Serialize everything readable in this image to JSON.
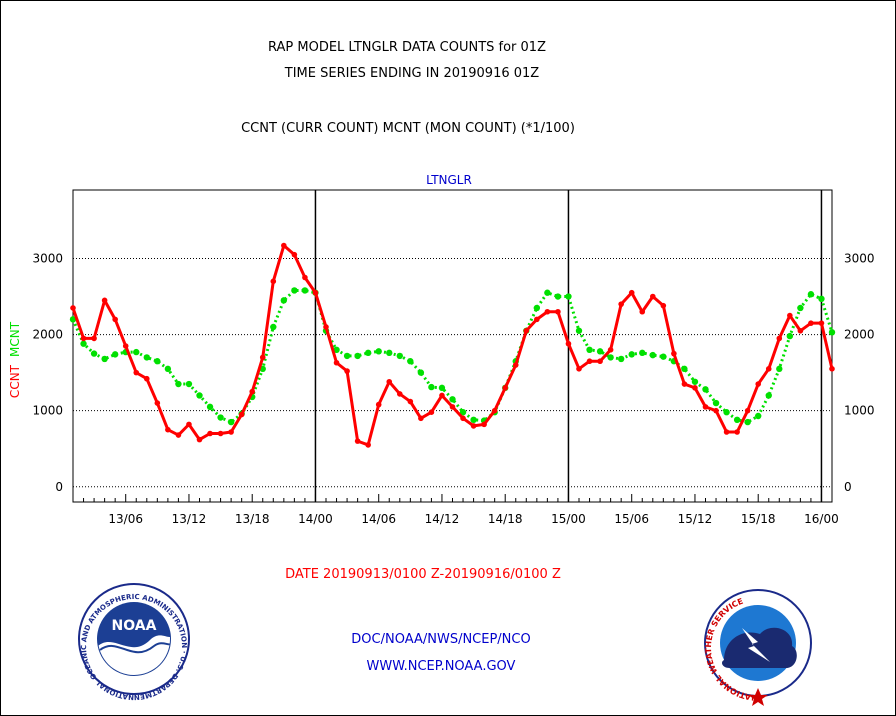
{
  "header": {
    "title_line1": "RAP MODEL LTNGLR DATA COUNTS for 01Z",
    "title_line2": "TIME SERIES ENDING IN 20190916 01Z",
    "subtitle": "CCNT (CURR COUNT) MCNT (MON COUNT) (*1/100)"
  },
  "footer": {
    "date_range": "DATE 20190913/0100 Z-20190916/0100 Z",
    "agency": "DOC/NOAA/NWS/NCEP/NCO",
    "website": "WWW.NCEP.NOAA.GOV"
  },
  "logos": {
    "noaa_text": "NOAA",
    "noaa_ring": "NATIONAL OCEANIC AND ATMOSPHERIC ADMINISTRATION · U.S. DEPARTMENT OF COMMERCE ·",
    "nws_ring": "NATIONAL WEATHER SERVICE"
  },
  "colors": {
    "ccnt": "#ff0000",
    "mcnt": "#00e000",
    "title": "#000000",
    "date_text": "#ff0000",
    "links": "#0000cc"
  },
  "chart_data": {
    "type": "line",
    "title": "LTNGLR",
    "ylabel_ccnt": "CCNT",
    "ylabel_mcnt": "MCNT",
    "x_unit": "hours from 2019-09-13 01Z",
    "xlim": [
      0,
      72
    ],
    "ylim": [
      -200,
      3900
    ],
    "yticks": [
      0,
      1000,
      2000,
      3000
    ],
    "x_ticks": [
      {
        "x": 5,
        "label": "13/06"
      },
      {
        "x": 11,
        "label": "13/12"
      },
      {
        "x": 17,
        "label": "13/18"
      },
      {
        "x": 23,
        "label": "14/00"
      },
      {
        "x": 29,
        "label": "14/06"
      },
      {
        "x": 35,
        "label": "14/12"
      },
      {
        "x": 41,
        "label": "14/18"
      },
      {
        "x": 47,
        "label": "15/00"
      },
      {
        "x": 53,
        "label": "15/06"
      },
      {
        "x": 59,
        "label": "15/12"
      },
      {
        "x": 65,
        "label": "15/18"
      },
      {
        "x": 71,
        "label": "16/00"
      }
    ],
    "day_boundaries": [
      23,
      47,
      71
    ],
    "grid": true,
    "series": [
      {
        "name": "CCNT",
        "values": [
          2350,
          1950,
          1950,
          2450,
          2200,
          1850,
          1500,
          1420,
          1100,
          750,
          680,
          820,
          620,
          700,
          700,
          720,
          950,
          1250,
          1700,
          2700,
          3170,
          3050,
          2750,
          2550,
          2100,
          1630,
          1520,
          600,
          550,
          1080,
          1380,
          1220,
          1120,
          900,
          980,
          1200,
          1050,
          900,
          800,
          820,
          1000,
          1300,
          1600,
          2050,
          2200,
          2300,
          2300,
          1880,
          1550,
          1650,
          1650,
          1800,
          2400,
          2550,
          2300,
          2500,
          2380,
          1750,
          1350,
          1300,
          1050,
          1000,
          720,
          720,
          1000,
          1350,
          1550,
          1950,
          2250,
          2050,
          2150,
          2150,
          1550
        ]
      },
      {
        "name": "MCNT",
        "values": [
          2200,
          1880,
          1750,
          1680,
          1740,
          1770,
          1770,
          1700,
          1650,
          1550,
          1350,
          1350,
          1200,
          1050,
          910,
          850,
          960,
          1180,
          1550,
          2100,
          2450,
          2580,
          2580,
          2550,
          2050,
          1800,
          1720,
          1720,
          1760,
          1780,
          1760,
          1720,
          1650,
          1500,
          1310,
          1300,
          1150,
          980,
          880,
          870,
          980,
          1300,
          1650,
          2050,
          2350,
          2550,
          2500,
          2500,
          2050,
          1800,
          1780,
          1700,
          1680,
          1740,
          1760,
          1730,
          1710,
          1650,
          1550,
          1380,
          1280,
          1100,
          980,
          880,
          850,
          930,
          1200,
          1550,
          1980,
          2350,
          2530,
          2470,
          2030
        ]
      }
    ]
  }
}
